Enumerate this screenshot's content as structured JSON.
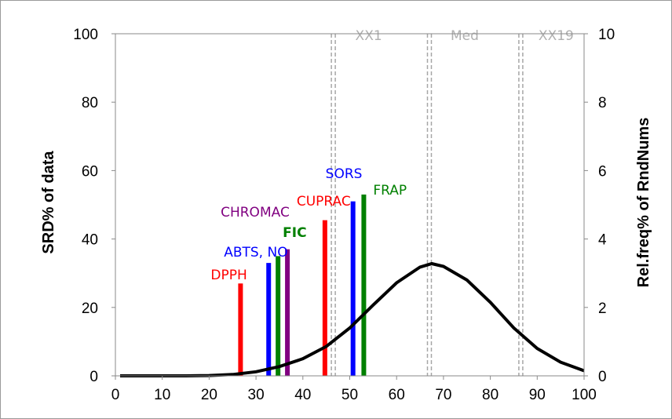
{
  "chart_data": {
    "type": "bar",
    "xlabel": "",
    "ylabel": "SRD% of data",
    "y2label": "Rel.freq% of RndNums",
    "xlim": [
      0,
      100
    ],
    "ylim": [
      0,
      100
    ],
    "y2lim": [
      0,
      10
    ],
    "xticks": [
      "0",
      "10",
      "20",
      "30",
      "40",
      "50",
      "60",
      "70",
      "80",
      "90",
      "100"
    ],
    "yticks": [
      "0",
      "20",
      "40",
      "60",
      "80",
      "100"
    ],
    "y2ticks": [
      "0",
      "2",
      "4",
      "6",
      "8",
      "10"
    ],
    "grid": false,
    "bars": [
      {
        "label": "DPPH",
        "x": 26.7,
        "value": 27,
        "color": "#ff0000",
        "bold": false
      },
      {
        "label": "ABTS, NO",
        "x": 32.7,
        "value": 33,
        "color": "#0000ff",
        "bold": false
      },
      {
        "label": "FIC",
        "x": 34.7,
        "value": 35,
        "color": "#008000",
        "bold": true
      },
      {
        "label": "CHROMAC",
        "x": 36.7,
        "value": 37,
        "color": "#800080",
        "bold": false
      },
      {
        "label": "CUPRAC",
        "x": 44.7,
        "value": 45.5,
        "color": "#ff0000",
        "bold": false
      },
      {
        "label": "SORS",
        "x": 50.7,
        "value": 51,
        "color": "#0000ff",
        "bold": false
      },
      {
        "label": "FRAP",
        "x": 53,
        "value": 53,
        "color": "#008000",
        "bold": false
      }
    ],
    "regions": [
      {
        "label": "XX1",
        "x": 46.5
      },
      {
        "label": "Med",
        "x": 67
      },
      {
        "label": "XX19",
        "x": 86.5
      }
    ],
    "curve": {
      "axis": "y2",
      "color": "#000000",
      "x": [
        1,
        5,
        10,
        15,
        20,
        25,
        30,
        35,
        40,
        45,
        50,
        55,
        60,
        65,
        67.5,
        70,
        75,
        80,
        85,
        90,
        95,
        100
      ],
      "y": [
        0.0,
        0.0,
        0.0,
        0.0,
        0.01,
        0.04,
        0.12,
        0.27,
        0.5,
        0.86,
        1.4,
        2.07,
        2.72,
        3.18,
        3.28,
        3.2,
        2.8,
        2.15,
        1.4,
        0.8,
        0.4,
        0.15
      ]
    }
  }
}
